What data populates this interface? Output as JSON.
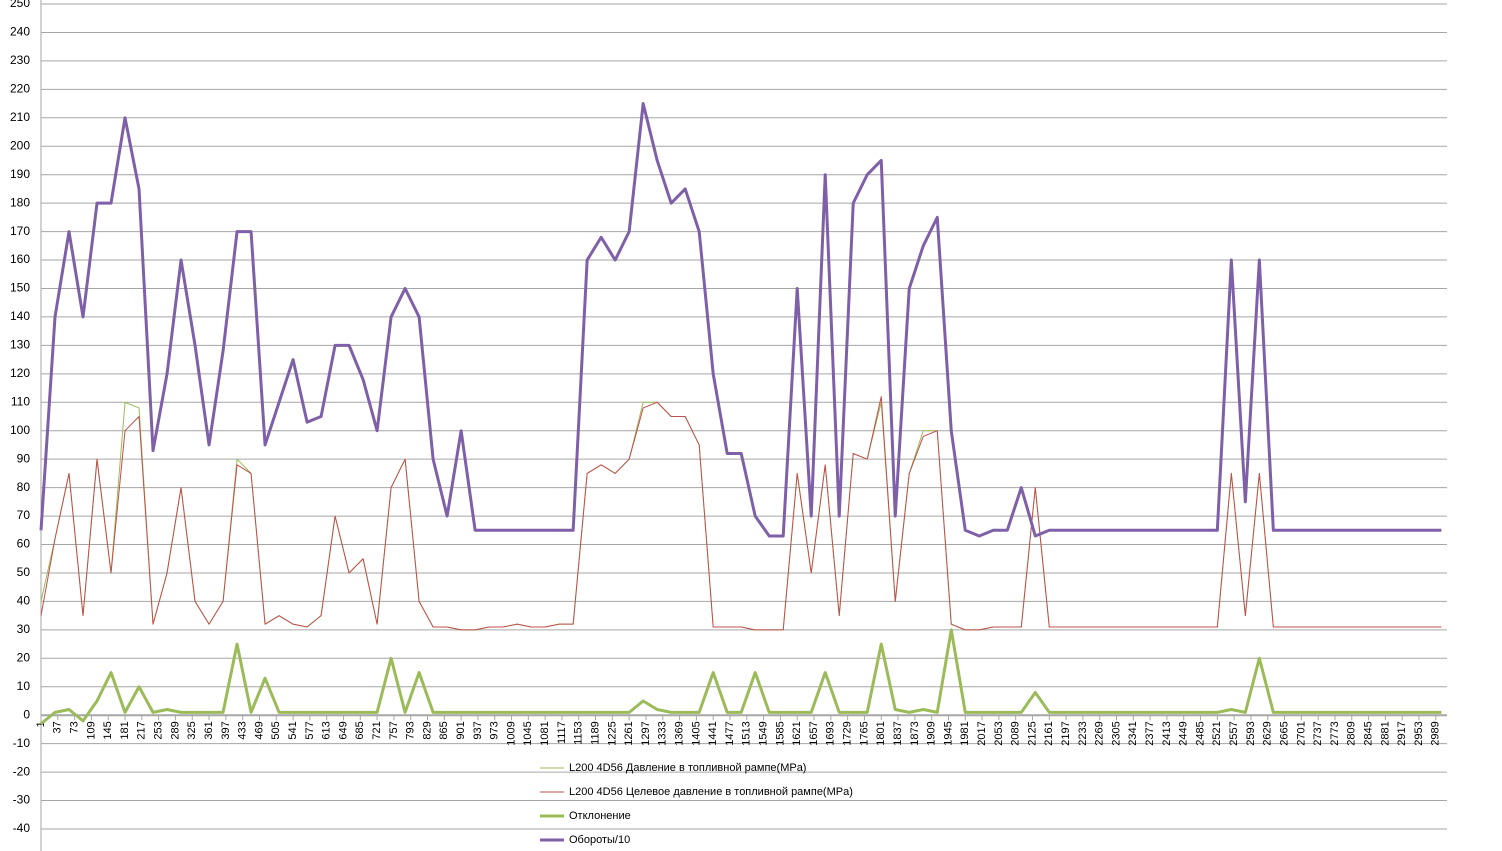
{
  "chart_data": {
    "type": "line",
    "x": [
      1,
      31,
      61,
      91,
      121,
      151,
      181,
      211,
      241,
      271,
      301,
      331,
      361,
      391,
      421,
      451,
      481,
      511,
      541,
      571,
      601,
      631,
      661,
      691,
      721,
      751,
      781,
      811,
      841,
      871,
      901,
      931,
      961,
      991,
      1021,
      1051,
      1081,
      1111,
      1141,
      1171,
      1201,
      1231,
      1261,
      1291,
      1321,
      1351,
      1381,
      1411,
      1441,
      1471,
      1501,
      1531,
      1561,
      1591,
      1621,
      1651,
      1681,
      1711,
      1741,
      1771,
      1801,
      1831,
      1861,
      1891,
      1921,
      1951,
      1981,
      2011,
      2041,
      2071,
      2101,
      2131,
      2161,
      2191,
      2221,
      2251,
      2281,
      2311,
      2341,
      2371,
      2401,
      2431,
      2461,
      2491,
      2521,
      2551,
      2581,
      2611,
      2641,
      2671,
      2701,
      2731,
      2761,
      2791,
      2821,
      2851,
      2881,
      2911,
      2941,
      2971,
      3001
    ],
    "xlim": [
      1,
      3013
    ],
    "xticks": [
      1,
      37,
      73,
      109,
      145,
      181,
      217,
      253,
      289,
      325,
      361,
      397,
      433,
      469,
      505,
      541,
      577,
      613,
      649,
      685,
      721,
      757,
      793,
      829,
      865,
      901,
      937,
      973,
      1009,
      1045,
      1081,
      1117,
      1153,
      1189,
      1225,
      1261,
      1297,
      1333,
      1369,
      1405,
      1441,
      1477,
      1513,
      1549,
      1585,
      1621,
      1657,
      1693,
      1729,
      1765,
      1801,
      1837,
      1873,
      1909,
      1945,
      1981,
      2017,
      2053,
      2089,
      2125,
      2161,
      2197,
      2233,
      2269,
      2305,
      2341,
      2377,
      2413,
      2449,
      2485,
      2521,
      2557,
      2593,
      2629,
      2665,
      2701,
      2737,
      2773,
      2809,
      2845,
      2881,
      2917,
      2953,
      2989
    ],
    "ylim": [
      -40,
      250
    ],
    "yticks": [
      -40,
      -30,
      -20,
      -10,
      0,
      10,
      20,
      30,
      40,
      50,
      60,
      70,
      80,
      90,
      100,
      110,
      120,
      130,
      140,
      150,
      160,
      170,
      180,
      190,
      200,
      210,
      220,
      230,
      240,
      250
    ],
    "grid": true,
    "series": [
      {
        "name": "L200 4D56 Давление в топливной рампе(MPa)",
        "color": "#9bbb59",
        "width": 1,
        "values": [
          40,
          62,
          85,
          35,
          90,
          50,
          110,
          108,
          32,
          50,
          80,
          40,
          32,
          40,
          90,
          85,
          32,
          35,
          32,
          31,
          35,
          70,
          50,
          55,
          32,
          80,
          90,
          40,
          31,
          31,
          30,
          30,
          31,
          31,
          32,
          31,
          31,
          32,
          32,
          85,
          88,
          85,
          90,
          110,
          110,
          105,
          105,
          95,
          31,
          31,
          31,
          30,
          30,
          30,
          85,
          50,
          88,
          35,
          92,
          90,
          110,
          40,
          85,
          100,
          100,
          32,
          30,
          30,
          31,
          31,
          31,
          80,
          31,
          31,
          31,
          31,
          31,
          31,
          31,
          31,
          31,
          31,
          31,
          31,
          31,
          85,
          35,
          85,
          31,
          31,
          31,
          31,
          31,
          31,
          31,
          31,
          31,
          31,
          31,
          31,
          31
        ]
      },
      {
        "name": "L200 4D56 Целевое давление  в топливной рампе(MPa)",
        "color": "#c0504d",
        "width": 1,
        "values": [
          35,
          62,
          85,
          35,
          90,
          50,
          100,
          105,
          32,
          50,
          80,
          40,
          32,
          40,
          88,
          85,
          32,
          35,
          32,
          31,
          35,
          70,
          50,
          55,
          32,
          80,
          90,
          40,
          31,
          31,
          30,
          30,
          31,
          31,
          32,
          31,
          31,
          32,
          32,
          85,
          88,
          85,
          90,
          108,
          110,
          105,
          105,
          95,
          31,
          31,
          31,
          30,
          30,
          30,
          85,
          50,
          88,
          35,
          92,
          90,
          112,
          40,
          85,
          98,
          100,
          32,
          30,
          30,
          31,
          31,
          31,
          80,
          31,
          31,
          31,
          31,
          31,
          31,
          31,
          31,
          31,
          31,
          31,
          31,
          31,
          85,
          35,
          85,
          31,
          31,
          31,
          31,
          31,
          31,
          31,
          31,
          31,
          31,
          31,
          31,
          31
        ]
      },
      {
        "name": "Отклонение",
        "color": "#9bbb59",
        "width": 3,
        "values": [
          -3,
          1,
          2,
          -2,
          5,
          15,
          1,
          10,
          1,
          2,
          1,
          1,
          1,
          1,
          25,
          1,
          13,
          1,
          1,
          1,
          1,
          1,
          1,
          1,
          1,
          20,
          1,
          15,
          1,
          1,
          1,
          1,
          1,
          1,
          1,
          1,
          1,
          1,
          1,
          1,
          1,
          1,
          1,
          5,
          2,
          1,
          1,
          1,
          15,
          1,
          1,
          15,
          1,
          1,
          1,
          1,
          15,
          1,
          1,
          1,
          25,
          2,
          1,
          2,
          1,
          30,
          1,
          1,
          1,
          1,
          1,
          8,
          1,
          1,
          1,
          1,
          1,
          1,
          1,
          1,
          1,
          1,
          1,
          1,
          1,
          2,
          1,
          20,
          1,
          1,
          1,
          1,
          1,
          1,
          1,
          1,
          1,
          1,
          1,
          1,
          1
        ]
      },
      {
        "name": "Обороты/10",
        "color": "#7f60a8",
        "width": 3,
        "values": [
          65,
          140,
          170,
          140,
          180,
          180,
          210,
          185,
          93,
          120,
          160,
          130,
          95,
          128,
          170,
          170,
          95,
          110,
          125,
          103,
          105,
          130,
          130,
          118,
          100,
          140,
          150,
          140,
          90,
          70,
          100,
          65,
          65,
          65,
          65,
          65,
          65,
          65,
          65,
          160,
          168,
          160,
          170,
          215,
          195,
          180,
          185,
          170,
          120,
          92,
          92,
          70,
          63,
          63,
          150,
          70,
          190,
          70,
          180,
          190,
          195,
          70,
          150,
          165,
          175,
          100,
          65,
          63,
          65,
          65,
          80,
          63,
          65,
          65,
          65,
          65,
          65,
          65,
          65,
          65,
          65,
          65,
          65,
          65,
          65,
          160,
          75,
          160,
          65,
          65,
          65,
          65,
          65,
          65,
          65,
          65,
          65,
          65,
          65,
          65,
          65
        ]
      }
    ]
  }
}
